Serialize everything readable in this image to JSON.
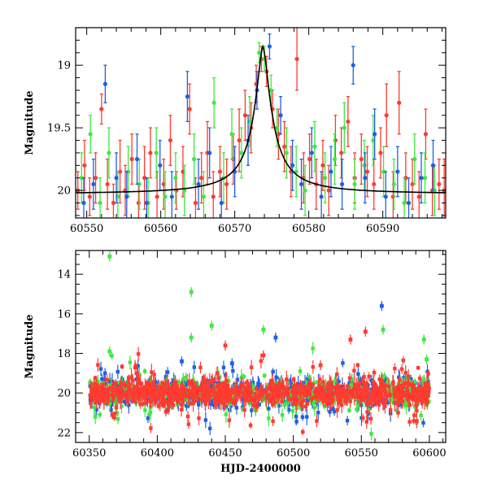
{
  "colors": {
    "red": "#ff3b30",
    "green": "#3dea3d",
    "blue": "#1f5fe6",
    "model": "#000000"
  },
  "chart_data": [
    {
      "type": "scatter",
      "title": "",
      "xlabel": "",
      "ylabel": "Magnitude",
      "xlim": [
        60548.5,
        60598.5
      ],
      "ylim": [
        20.22,
        18.7
      ],
      "y_inverted": true,
      "xticks": [
        60550,
        60560,
        60570,
        60580,
        60590
      ],
      "yticks": [
        19,
        19.5,
        20
      ],
      "x_tick_labels": [
        "60550",
        "60560",
        "60570",
        "60580",
        "60590"
      ],
      "y_tick_labels": [
        "19",
        "19.5",
        "20"
      ],
      "grid": false,
      "legend": "none",
      "model_curve": {
        "type": "line",
        "color": "#000000",
        "peak_x": 60573.8,
        "peak_mag": 18.85,
        "baseline_mag": 20.03
      },
      "series": [
        {
          "color": "red",
          "points": [
            [
              60548.8,
              20.0,
              0.15
            ],
            [
              60549.7,
              19.8,
              0.2
            ],
            [
              60550.4,
              20.05,
              0.15
            ],
            [
              60551.2,
              19.9,
              0.2
            ],
            [
              60552.0,
              19.35,
              0.12
            ],
            [
              60552.8,
              19.95,
              0.2
            ],
            [
              60553.6,
              20.1,
              0.15
            ],
            [
              60554.5,
              19.85,
              0.25
            ],
            [
              60555.2,
              20.0,
              0.2
            ],
            [
              60556.1,
              19.75,
              0.2
            ],
            [
              60557.0,
              20.1,
              0.15
            ],
            [
              60557.8,
              19.9,
              0.25
            ],
            [
              60558.6,
              19.7,
              0.2
            ],
            [
              60559.5,
              20.05,
              0.2
            ],
            [
              60560.4,
              19.95,
              0.2
            ],
            [
              60561.3,
              19.6,
              0.2
            ],
            [
              60562.1,
              20.0,
              0.15
            ],
            [
              60563.0,
              19.85,
              0.2
            ],
            [
              60563.9,
              19.35,
              0.2
            ],
            [
              60564.7,
              20.1,
              0.2
            ],
            [
              60565.5,
              19.9,
              0.2
            ],
            [
              60566.3,
              19.7,
              0.25
            ],
            [
              60567.1,
              20.05,
              0.2
            ],
            [
              60568.0,
              19.85,
              0.2
            ],
            [
              60568.9,
              19.95,
              0.2
            ],
            [
              60569.8,
              19.75,
              0.2
            ],
            [
              60570.6,
              19.6,
              0.25
            ],
            [
              60571.4,
              19.4,
              0.2
            ],
            [
              60572.2,
              19.5,
              0.2
            ],
            [
              60572.9,
              19.15,
              0.15
            ],
            [
              60573.6,
              18.95,
              0.1
            ],
            [
              60574.3,
              19.05,
              0.12
            ],
            [
              60575.1,
              19.35,
              0.15
            ],
            [
              60575.9,
              19.55,
              0.2
            ],
            [
              60576.7,
              19.65,
              0.2
            ],
            [
              60577.6,
              19.85,
              0.2
            ],
            [
              60578.4,
              18.95,
              0.25
            ],
            [
              60579.3,
              19.9,
              0.2
            ],
            [
              60580.1,
              19.75,
              0.2
            ],
            [
              60581.0,
              19.95,
              0.2
            ],
            [
              60581.9,
              19.8,
              0.2
            ],
            [
              60582.7,
              20.0,
              0.2
            ],
            [
              60583.6,
              19.6,
              0.2
            ],
            [
              60584.4,
              19.7,
              0.2
            ],
            [
              60585.3,
              19.45,
              0.2
            ],
            [
              60586.2,
              19.9,
              0.2
            ],
            [
              60587.1,
              19.75,
              0.2
            ],
            [
              60587.9,
              19.85,
              0.2
            ],
            [
              60588.8,
              19.95,
              0.2
            ],
            [
              60589.7,
              19.7,
              0.2
            ],
            [
              60590.5,
              19.4,
              0.25
            ],
            [
              60591.4,
              20.05,
              0.2
            ],
            [
              60592.2,
              19.3,
              0.25
            ],
            [
              60593.1,
              19.9,
              0.2
            ],
            [
              60594.0,
              19.95,
              0.2
            ],
            [
              60594.9,
              20.05,
              0.2
            ],
            [
              60595.8,
              19.55,
              0.2
            ],
            [
              60596.7,
              20.0,
              0.2
            ],
            [
              60597.6,
              19.95,
              0.2
            ],
            [
              60598.3,
              20.0,
              0.25
            ]
          ]
        },
        {
          "color": "green",
          "points": [
            [
              60549.3,
              19.9,
              0.2
            ],
            [
              60550.5,
              19.55,
              0.15
            ],
            [
              60551.8,
              20.1,
              0.2
            ],
            [
              60553.0,
              19.7,
              0.2
            ],
            [
              60554.2,
              20.05,
              0.2
            ],
            [
              60555.6,
              19.85,
              0.2
            ],
            [
              60557.1,
              19.95,
              0.2
            ],
            [
              60558.3,
              20.1,
              0.2
            ],
            [
              60559.4,
              19.7,
              0.2
            ],
            [
              60560.6,
              20.05,
              0.2
            ],
            [
              60562.0,
              19.9,
              0.2
            ],
            [
              60563.2,
              20.0,
              0.2
            ],
            [
              60564.5,
              19.75,
              0.2
            ],
            [
              60565.8,
              20.05,
              0.2
            ],
            [
              60567.2,
              19.3,
              0.2
            ],
            [
              60568.5,
              19.9,
              0.2
            ],
            [
              60569.6,
              19.55,
              0.2
            ],
            [
              60570.9,
              19.7,
              0.2
            ],
            [
              60572.0,
              19.45,
              0.2
            ],
            [
              60573.3,
              18.9,
              0.08
            ],
            [
              60574.0,
              18.95,
              0.1
            ],
            [
              60574.9,
              19.2,
              0.12
            ],
            [
              60575.7,
              19.5,
              0.15
            ],
            [
              60577.0,
              19.7,
              0.2
            ],
            [
              60578.3,
              19.85,
              0.2
            ],
            [
              60579.5,
              20.0,
              0.2
            ],
            [
              60580.8,
              19.65,
              0.2
            ],
            [
              60582.2,
              19.9,
              0.2
            ],
            [
              60583.5,
              19.75,
              0.2
            ],
            [
              60584.8,
              19.5,
              0.2
            ],
            [
              60586.2,
              19.95,
              0.2
            ],
            [
              60587.5,
              19.8,
              0.2
            ],
            [
              60588.7,
              19.6,
              0.2
            ],
            [
              60590.1,
              19.85,
              0.2
            ],
            [
              60591.5,
              19.95,
              0.2
            ],
            [
              60592.9,
              20.1,
              0.2
            ],
            [
              60594.3,
              19.75,
              0.2
            ],
            [
              60595.7,
              19.9,
              0.2
            ],
            [
              60597.0,
              20.0,
              0.2
            ]
          ]
        },
        {
          "color": "blue",
          "points": [
            [
              60549.6,
              20.1,
              0.2
            ],
            [
              60550.9,
              19.95,
              0.2
            ],
            [
              60552.5,
              19.15,
              0.15
            ],
            [
              60554.0,
              19.9,
              0.2
            ],
            [
              60555.4,
              20.05,
              0.2
            ],
            [
              60556.8,
              19.75,
              0.2
            ],
            [
              60558.1,
              20.1,
              0.2
            ],
            [
              60559.9,
              19.8,
              0.2
            ],
            [
              60561.5,
              20.05,
              0.2
            ],
            [
              60563.6,
              19.25,
              0.2
            ],
            [
              60565.1,
              19.95,
              0.2
            ],
            [
              60566.6,
              19.7,
              0.2
            ],
            [
              60568.2,
              20.1,
              0.2
            ],
            [
              60570.0,
              19.85,
              0.2
            ],
            [
              60571.8,
              19.6,
              0.2
            ],
            [
              60573.0,
              19.2,
              0.15
            ],
            [
              60574.7,
              18.85,
              0.1
            ],
            [
              60576.2,
              19.4,
              0.15
            ],
            [
              60577.8,
              19.8,
              0.2
            ],
            [
              60579.0,
              19.95,
              0.2
            ],
            [
              60580.4,
              19.7,
              0.2
            ],
            [
              60581.7,
              20.05,
              0.2
            ],
            [
              60583.0,
              19.85,
              0.2
            ],
            [
              60584.5,
              19.95,
              0.2
            ],
            [
              60586.0,
              19.0,
              0.15
            ],
            [
              60587.6,
              19.9,
              0.2
            ],
            [
              60588.9,
              19.55,
              0.2
            ],
            [
              60590.4,
              20.05,
              0.2
            ],
            [
              60592.0,
              19.85,
              0.2
            ],
            [
              60593.5,
              20.1,
              0.2
            ],
            [
              60595.2,
              19.9,
              0.2
            ],
            [
              60596.8,
              19.8,
              0.2
            ]
          ]
        }
      ]
    },
    {
      "type": "scatter",
      "title": "",
      "xlabel": "HJD-2400000",
      "ylabel": "Magnitude",
      "xlim": [
        60340,
        60612
      ],
      "ylim": [
        22.5,
        12.8
      ],
      "y_inverted": true,
      "xticks": [
        60350,
        60400,
        60450,
        60500,
        60550,
        60600
      ],
      "yticks": [
        14,
        16,
        18,
        20,
        22
      ],
      "x_tick_labels": [
        "60350",
        "60400",
        "60450",
        "60500",
        "60550",
        "60600"
      ],
      "y_tick_labels": [
        "14",
        "16",
        "18",
        "20",
        "22"
      ],
      "grid": false,
      "legend": "none",
      "dense_band": {
        "x_range": [
          60350,
          60600
        ],
        "center_mag": 20.0,
        "spread_mag": 0.6,
        "colors": [
          "blue",
          "green",
          "red"
        ]
      },
      "outliers": [
        {
          "color": "green",
          "x": 60365,
          "y": 13.1
        },
        {
          "color": "green",
          "x": 60365,
          "y": 17.9
        },
        {
          "color": "green",
          "x": 60425,
          "y": 14.9
        },
        {
          "color": "green",
          "x": 60425,
          "y": 17.2
        },
        {
          "color": "green",
          "x": 60440,
          "y": 16.6
        },
        {
          "color": "green",
          "x": 60478,
          "y": 16.8
        },
        {
          "color": "green",
          "x": 60566,
          "y": 16.8
        },
        {
          "color": "green",
          "x": 60596,
          "y": 17.3
        },
        {
          "color": "green",
          "x": 60598,
          "y": 18.3
        },
        {
          "color": "blue",
          "x": 60565,
          "y": 15.6
        },
        {
          "color": "blue",
          "x": 60487,
          "y": 17.2
        },
        {
          "color": "blue",
          "x": 60418,
          "y": 18.4
        },
        {
          "color": "blue",
          "x": 60455,
          "y": 18.5
        },
        {
          "color": "red",
          "x": 60450,
          "y": 17.6
        },
        {
          "color": "red",
          "x": 60542,
          "y": 17.3
        },
        {
          "color": "red",
          "x": 60553,
          "y": 16.9
        },
        {
          "color": "red",
          "x": 60478,
          "y": 18.1
        },
        {
          "color": "red",
          "x": 60520,
          "y": 18.6
        }
      ]
    }
  ]
}
